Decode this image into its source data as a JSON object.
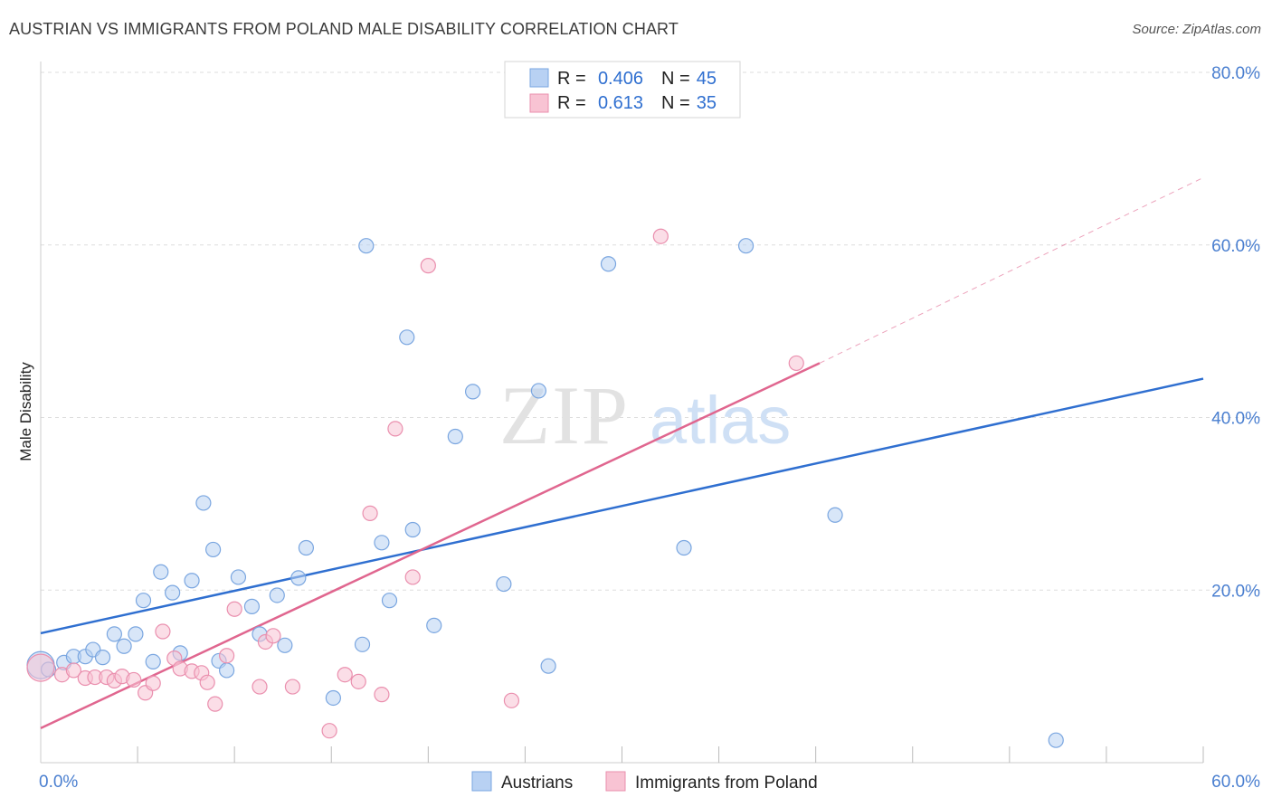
{
  "title": "AUSTRIAN VS IMMIGRANTS FROM POLAND MALE DISABILITY CORRELATION CHART",
  "source": "Source: ZipAtlas.com",
  "watermark": {
    "zip": "ZIP",
    "atlas": "atlas"
  },
  "colors": {
    "austrians_fill": "#b8d1f3",
    "austrians_stroke": "#7aa6e0",
    "austrians_line": "#2f6fd0",
    "poland_fill": "#f8c3d3",
    "poland_stroke": "#ea8fae",
    "poland_line": "#e0668f",
    "tick_text": "#4a7fd0",
    "grid": "#dddddd"
  },
  "legend": {
    "rows": [
      {
        "r_label": "R =",
        "r_value": "0.406",
        "n_label": "N =",
        "n_value": "45"
      },
      {
        "r_label": "R =",
        "r_value": "0.613",
        "n_label": "N =",
        "n_value": "35"
      }
    ]
  },
  "chart_data": {
    "type": "scatter",
    "title": "AUSTRIAN VS IMMIGRANTS FROM POLAND MALE DISABILITY CORRELATION CHART",
    "xlabel": "",
    "ylabel": "Male Disability",
    "xlim": [
      0,
      60
    ],
    "ylim": [
      0,
      80
    ],
    "x_tick_labels": [
      "0.0%",
      "60.0%"
    ],
    "y_ticks": [
      20,
      40,
      60,
      80
    ],
    "y_tick_labels": [
      "20.0%",
      "40.0%",
      "60.0%",
      "80.0%"
    ],
    "grid": true,
    "legend_position": "top-center",
    "series": [
      {
        "name": "Austrians",
        "points": [
          [
            0.0,
            11.3
          ],
          [
            0.4,
            10.8
          ],
          [
            1.2,
            11.6
          ],
          [
            1.7,
            12.3
          ],
          [
            2.3,
            12.3
          ],
          [
            2.7,
            13.1
          ],
          [
            3.2,
            12.2
          ],
          [
            3.8,
            14.9
          ],
          [
            4.3,
            13.5
          ],
          [
            4.9,
            14.9
          ],
          [
            5.3,
            18.8
          ],
          [
            5.8,
            11.7
          ],
          [
            6.2,
            22.1
          ],
          [
            6.8,
            19.7
          ],
          [
            7.2,
            12.7
          ],
          [
            7.8,
            21.1
          ],
          [
            8.4,
            30.1
          ],
          [
            8.9,
            24.7
          ],
          [
            9.2,
            11.8
          ],
          [
            9.6,
            10.7
          ],
          [
            10.2,
            21.5
          ],
          [
            10.9,
            18.1
          ],
          [
            11.3,
            14.9
          ],
          [
            12.2,
            19.4
          ],
          [
            12.6,
            13.6
          ],
          [
            13.3,
            21.4
          ],
          [
            13.7,
            24.9
          ],
          [
            15.1,
            7.5
          ],
          [
            16.6,
            13.7
          ],
          [
            16.8,
            59.9
          ],
          [
            17.6,
            25.5
          ],
          [
            18.0,
            18.8
          ],
          [
            18.9,
            49.3
          ],
          [
            19.2,
            27.0
          ],
          [
            20.3,
            15.9
          ],
          [
            21.4,
            37.8
          ],
          [
            22.3,
            43.0
          ],
          [
            23.9,
            20.7
          ],
          [
            25.7,
            43.1
          ],
          [
            26.2,
            11.2
          ],
          [
            29.3,
            57.8
          ],
          [
            33.2,
            24.9
          ],
          [
            36.4,
            59.9
          ],
          [
            41.0,
            28.7
          ],
          [
            52.4,
            2.6
          ]
        ],
        "trend": {
          "x": [
            0,
            60
          ],
          "y": [
            15.0,
            44.5
          ]
        }
      },
      {
        "name": "Immigrants from Poland",
        "points": [
          [
            0.0,
            11.0
          ],
          [
            1.1,
            10.2
          ],
          [
            1.7,
            10.7
          ],
          [
            2.3,
            9.8
          ],
          [
            2.8,
            9.9
          ],
          [
            3.4,
            9.9
          ],
          [
            3.8,
            9.5
          ],
          [
            4.2,
            10.0
          ],
          [
            4.8,
            9.6
          ],
          [
            5.4,
            8.1
          ],
          [
            5.8,
            9.2
          ],
          [
            6.3,
            15.2
          ],
          [
            6.9,
            12.1
          ],
          [
            7.2,
            10.9
          ],
          [
            7.8,
            10.6
          ],
          [
            8.3,
            10.4
          ],
          [
            8.6,
            9.3
          ],
          [
            9.0,
            6.8
          ],
          [
            9.6,
            12.4
          ],
          [
            10.0,
            17.8
          ],
          [
            11.3,
            8.8
          ],
          [
            11.6,
            14.0
          ],
          [
            12.0,
            14.7
          ],
          [
            13.0,
            8.8
          ],
          [
            14.9,
            3.7
          ],
          [
            15.7,
            10.2
          ],
          [
            16.4,
            9.4
          ],
          [
            17.0,
            28.9
          ],
          [
            17.6,
            7.9
          ],
          [
            18.3,
            38.7
          ],
          [
            19.2,
            21.5
          ],
          [
            20.0,
            57.6
          ],
          [
            24.3,
            7.2
          ],
          [
            32.0,
            61.0
          ],
          [
            39.0,
            46.3
          ]
        ],
        "trend": {
          "x": [
            0,
            40.2
          ],
          "y": [
            4.0,
            46.3
          ]
        },
        "trend_extension": {
          "x": [
            40.2,
            60
          ],
          "y": [
            46.3,
            67.8
          ]
        }
      }
    ]
  }
}
